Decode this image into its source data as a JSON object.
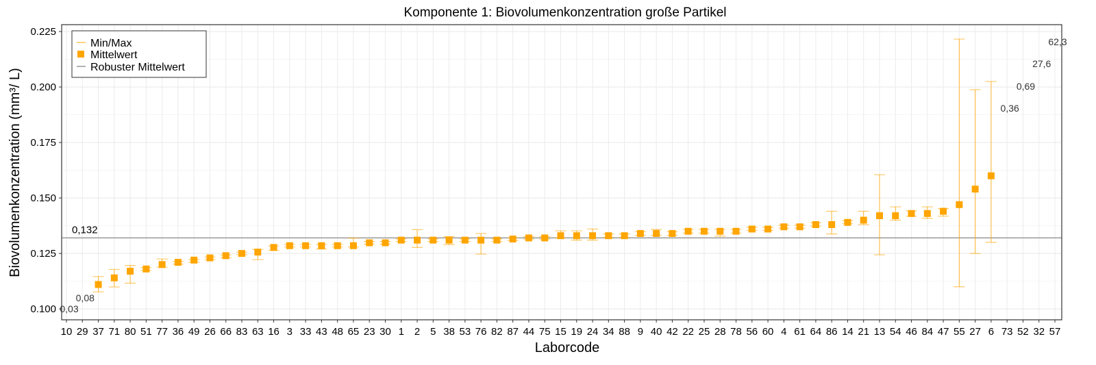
{
  "chart_data": {
    "type": "scatter",
    "title": "Komponente 1: Biovolumenkonzentration große Partikel",
    "xlabel": "Laborcode",
    "ylabel": "Biovolumenkonzentration (mm³/ L)",
    "ylim": [
      0.0951,
      0.2281
    ],
    "yticks": [
      0.1,
      0.125,
      0.15,
      0.175,
      0.2,
      0.225
    ],
    "ytick_labels": [
      "0.100",
      "0.125",
      "0.150",
      "0.175",
      "0.200",
      "0.225"
    ],
    "grid": true,
    "legend_position": "top-left",
    "legend": [
      "Min/Max",
      "Mittelwert",
      "Robuster Mittelwert"
    ],
    "robust_mean": 0.132,
    "robust_mean_label": "0,132",
    "colors": {
      "point": "#FFA500",
      "errorbar": "#FFA500",
      "robust_line": "#999999",
      "grid": "#EBEBEB"
    },
    "categories": [
      "10",
      "29",
      "37",
      "71",
      "80",
      "51",
      "77",
      "36",
      "49",
      "26",
      "66",
      "83",
      "63",
      "16",
      "3",
      "33",
      "43",
      "48",
      "65",
      "23",
      "30",
      "1",
      "2",
      "5",
      "38",
      "53",
      "76",
      "82",
      "87",
      "44",
      "75",
      "15",
      "19",
      "24",
      "34",
      "88",
      "9",
      "40",
      "42",
      "22",
      "25",
      "28",
      "78",
      "56",
      "60",
      "4",
      "61",
      "64",
      "86",
      "14",
      "21",
      "13",
      "54",
      "46",
      "84",
      "47",
      "55",
      "27",
      "6",
      "73",
      "52",
      "32",
      "57"
    ],
    "mean": [
      0.03,
      0.08,
      0.111,
      0.114,
      0.117,
      0.118,
      0.12,
      0.121,
      0.122,
      0.123,
      0.124,
      0.125,
      0.1256,
      0.1277,
      0.1285,
      0.1285,
      0.1285,
      0.1285,
      0.1285,
      0.1298,
      0.1298,
      0.131,
      0.131,
      0.131,
      0.131,
      0.131,
      0.131,
      0.131,
      0.1315,
      0.132,
      0.132,
      0.133,
      0.133,
      0.133,
      0.133,
      0.133,
      0.134,
      0.134,
      0.134,
      0.135,
      0.135,
      0.135,
      0.135,
      0.136,
      0.136,
      0.137,
      0.137,
      0.138,
      0.138,
      0.139,
      0.14,
      0.142,
      0.142,
      0.143,
      0.143,
      0.144,
      0.147,
      0.154,
      0.16,
      0.36,
      0.69,
      27.6,
      62.3
    ],
    "min": [
      null,
      null,
      0.1077,
      0.1099,
      0.1116,
      0.1173,
      0.1188,
      0.1202,
      0.1211,
      0.1222,
      0.1231,
      0.1244,
      0.1222,
      0.1264,
      0.1279,
      0.1279,
      0.127,
      0.1279,
      0.1279,
      0.1292,
      0.1292,
      0.1304,
      0.1277,
      0.1304,
      0.129,
      0.1304,
      0.1247,
      0.1304,
      0.1309,
      0.1315,
      0.1315,
      0.132,
      0.131,
      0.131,
      0.1322,
      0.1322,
      0.1332,
      0.1332,
      0.1332,
      0.1342,
      0.1342,
      0.1328,
      0.1342,
      0.1354,
      0.1354,
      0.1364,
      0.1364,
      0.1373,
      0.1338,
      0.1384,
      0.138,
      0.1244,
      0.14,
      0.1418,
      0.1408,
      0.1418,
      0.11,
      0.125,
      0.13,
      null,
      null,
      null,
      null
    ],
    "max": [
      null,
      null,
      0.1146,
      0.1178,
      0.1196,
      0.1186,
      0.1225,
      0.1214,
      0.1223,
      0.1234,
      0.1243,
      0.1256,
      0.1268,
      0.1284,
      0.1291,
      0.1291,
      0.1291,
      0.1291,
      0.1319,
      0.1304,
      0.1304,
      0.1316,
      0.1357,
      0.1316,
      0.1326,
      0.1316,
      0.134,
      0.1316,
      0.1321,
      0.1326,
      0.1326,
      0.1352,
      0.1352,
      0.136,
      0.1338,
      0.1338,
      0.1348,
      0.1358,
      0.1348,
      0.1358,
      0.1358,
      0.1358,
      0.1358,
      0.1368,
      0.1368,
      0.1378,
      0.1378,
      0.1388,
      0.144,
      0.1398,
      0.144,
      0.1605,
      0.146,
      0.1442,
      0.146,
      0.1452,
      0.2216,
      0.1988,
      0.2025,
      null,
      null,
      null,
      null
    ],
    "offscale_labels": [
      {
        "category": "10",
        "label": "0,03"
      },
      {
        "category": "29",
        "label": "0,08"
      },
      {
        "category": "73",
        "label": "0,36"
      },
      {
        "category": "52",
        "label": "0,69"
      },
      {
        "category": "32",
        "label": "27,6"
      },
      {
        "category": "57",
        "label": "62,3"
      }
    ]
  }
}
